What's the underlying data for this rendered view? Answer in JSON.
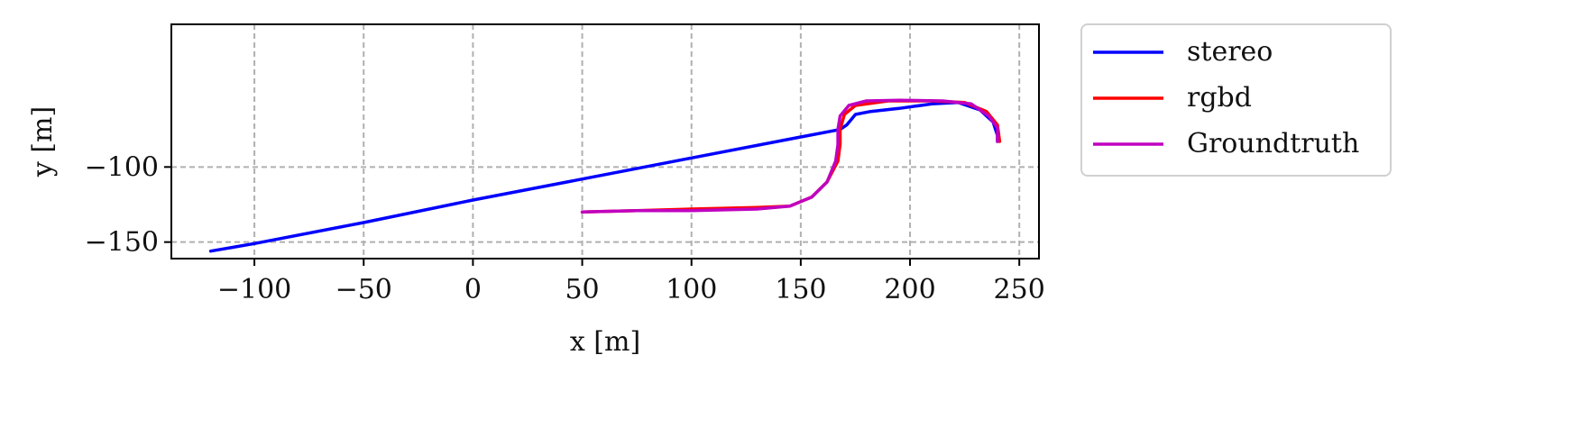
{
  "chart_data": {
    "type": "line",
    "xlabel": "x [m]",
    "ylabel": "y [m]",
    "xlim": [
      -138,
      259
    ],
    "ylim": [
      -161,
      -5
    ],
    "xticks": [
      -100,
      -50,
      0,
      50,
      100,
      150,
      200,
      250
    ],
    "xtick_labels": [
      "−100",
      "−50",
      "0",
      "50",
      "100",
      "150",
      "200",
      "250"
    ],
    "yticks": [
      -100,
      -150
    ],
    "ytick_labels": [
      "−100",
      "−150"
    ],
    "grid": true,
    "legend_position": "outside-right",
    "series": [
      {
        "name": "stereo",
        "color": "#0000ff",
        "x": [
          -120,
          -100,
          -50,
          0,
          50,
          100,
          150,
          168,
          171,
          175,
          182,
          195,
          210,
          222,
          232,
          238,
          240,
          240
        ],
        "y": [
          -156,
          -151,
          -137,
          -122,
          -108,
          -94,
          -80,
          -75,
          -72,
          -65,
          -63,
          -61,
          -58,
          -57,
          -62,
          -70,
          -79,
          -83
        ]
      },
      {
        "name": "rgbd",
        "color": "#ff0000",
        "x": [
          50,
          75,
          100,
          130,
          145,
          155,
          162,
          167,
          168,
          168,
          170,
          175,
          190,
          210,
          225,
          235,
          240,
          241
        ],
        "y": [
          -130,
          -129,
          -128,
          -127,
          -126,
          -120,
          -110,
          -96,
          -85,
          -75,
          -65,
          -59,
          -56,
          -56,
          -57,
          -63,
          -72,
          -83
        ]
      },
      {
        "name": "Groundtruth",
        "color": "#c000c0",
        "x": [
          50,
          75,
          100,
          130,
          145,
          155,
          162,
          166,
          167,
          167,
          168,
          172,
          180,
          195,
          215,
          228,
          236,
          240,
          240
        ],
        "y": [
          -130,
          -129,
          -129,
          -128,
          -126,
          -120,
          -110,
          -96,
          -85,
          -75,
          -66,
          -59,
          -56,
          -55.5,
          -56,
          -58,
          -66,
          -74,
          -83
        ]
      }
    ]
  }
}
